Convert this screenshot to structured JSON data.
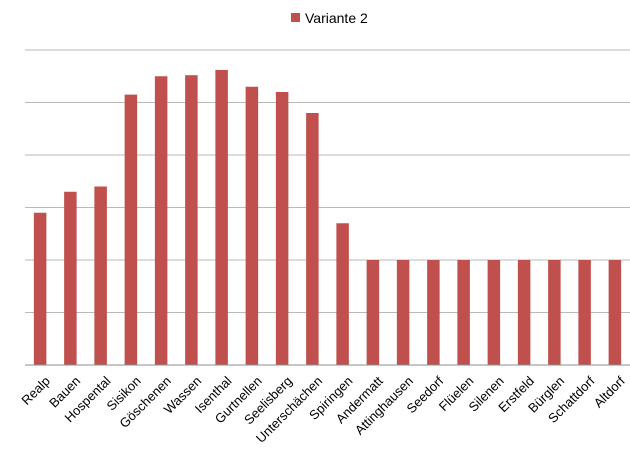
{
  "chart_data": {
    "type": "bar",
    "categories": [
      "Realp",
      "Bauen",
      "Hospental",
      "Sisikon",
      "Göschenen",
      "Wassen",
      "Isenthal",
      "Gurtnellen",
      "Seelisberg",
      "Unterschächen",
      "Spiringen",
      "Andermatt",
      "Attinghausen",
      "Seedorf",
      "Flüelen",
      "Silenen",
      "Erstfeld",
      "Bürglen",
      "Schattdorf",
      "Altdorf"
    ],
    "series": [
      {
        "name": "Variante 2",
        "color": "#c0504d",
        "values": [
          2.9,
          3.3,
          3.4,
          5.15,
          5.5,
          5.52,
          5.62,
          5.3,
          5.2,
          4.8,
          2.7,
          2.0,
          2.0,
          2.0,
          2.0,
          2.0,
          2.0,
          2.0,
          2.0,
          2.0
        ]
      }
    ],
    "ylim": [
      0,
      6
    ],
    "grid": true,
    "legend": "top-center",
    "y_tick_labels_shown": false
  }
}
